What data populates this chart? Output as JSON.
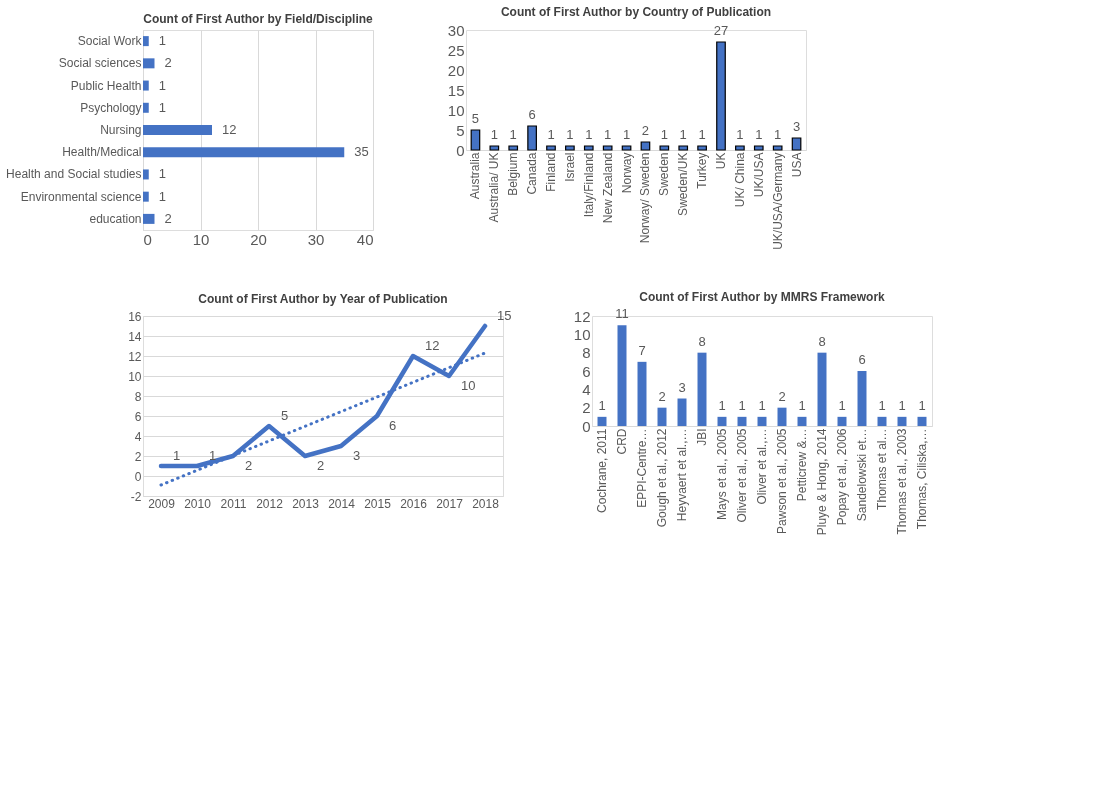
{
  "chart_data": [
    {
      "type": "bar",
      "orientation": "horizontal",
      "title": "Count of First Author  by Field/Discipline",
      "categories": [
        "Social Work",
        "Social sciences",
        "Public Health",
        "Psychology",
        "Nursing",
        "Health/Medical",
        "Health and Social studies",
        "Environmental science",
        "education"
      ],
      "values": [
        1,
        2,
        1,
        1,
        12,
        35,
        1,
        1,
        2
      ],
      "color": "#4472c4",
      "xlim": [
        0,
        40
      ],
      "xticks": [
        0,
        10,
        20,
        30,
        40
      ],
      "grid": "x",
      "data_labels": true
    },
    {
      "type": "bar",
      "title": "Count of First Author  by Country of Publication",
      "categories": [
        "Australia",
        "Australia/ UK",
        "Belgium",
        "Canada",
        "Finland",
        "Israel",
        "Italy/Finland",
        "New Zealand",
        "Norway",
        "Norway/ Sweden",
        "Sweden",
        "Sweden/UK",
        "Turkey",
        "UK",
        "UK/ China",
        "UK/USA",
        "UK/USA/Germany",
        "USA"
      ],
      "values": [
        5,
        1,
        1,
        6,
        1,
        1,
        1,
        1,
        1,
        2,
        1,
        1,
        1,
        27,
        1,
        1,
        1,
        3
      ],
      "color": "#4472c4",
      "ylim": [
        0,
        30
      ],
      "yticks": [
        0,
        5,
        10,
        15,
        20,
        25,
        30
      ],
      "grid": false,
      "data_labels": true
    },
    {
      "type": "line",
      "title": "Count of First Author  by Year of Publication",
      "x": [
        2009,
        2010,
        2011,
        2012,
        2013,
        2014,
        2015,
        2016,
        2017,
        2018
      ],
      "xlim": [
        2008.5,
        2018.5
      ],
      "xticks": [
        2009,
        2010,
        2011,
        2012,
        2013,
        2014,
        2015,
        2016,
        2017,
        2018
      ],
      "series": [
        {
          "color": "#4472c4",
          "values": [
            1,
            1,
            2,
            5,
            2,
            3,
            6,
            12,
            10,
            15
          ],
          "value_labels": [
            "1",
            "1",
            "2",
            "5",
            "2",
            "3",
            "6",
            "12",
            "10",
            "15"
          ],
          "line_style": "solid"
        },
        {
          "type": "line",
          "color": "#4472c4",
          "x": [
            2009,
            2018
          ],
          "values": [
            -0.9,
            12.3
          ],
          "line_style": "dotted"
        }
      ],
      "ylim": [
        -2,
        16
      ],
      "yticks": [
        -2,
        0,
        2,
        4,
        6,
        8,
        10,
        12,
        14,
        16
      ],
      "grid": "y",
      "marker": "none"
    },
    {
      "type": "bar",
      "title": "Count of First Author by MMRS Framework",
      "categories": [
        "Cochrane, 2011",
        "CRD",
        "EPPI-Centre…",
        "Gough et al., 2012",
        "Heyvaert et al.,…",
        "JBI",
        "Mays et al., 2005",
        "Oliver et al., 2005",
        "Oliver et al.,…",
        "Pawson et al., 2005",
        "Petticrew &…",
        "Pluye & Hong, 2014",
        "Popay et al., 2006",
        "Sandelowski et…",
        "Thomas et al…",
        "Thomas et al., 2003",
        "Thomas, Ciliska,…"
      ],
      "values": [
        1,
        11,
        7,
        2,
        3,
        8,
        1,
        1,
        1,
        2,
        1,
        8,
        1,
        6,
        1,
        1,
        1
      ],
      "color": "#4472c4",
      "ylim": [
        0,
        12
      ],
      "yticks": [
        0,
        2,
        4,
        6,
        8,
        10,
        12
      ],
      "grid": false,
      "data_labels": true
    }
  ]
}
